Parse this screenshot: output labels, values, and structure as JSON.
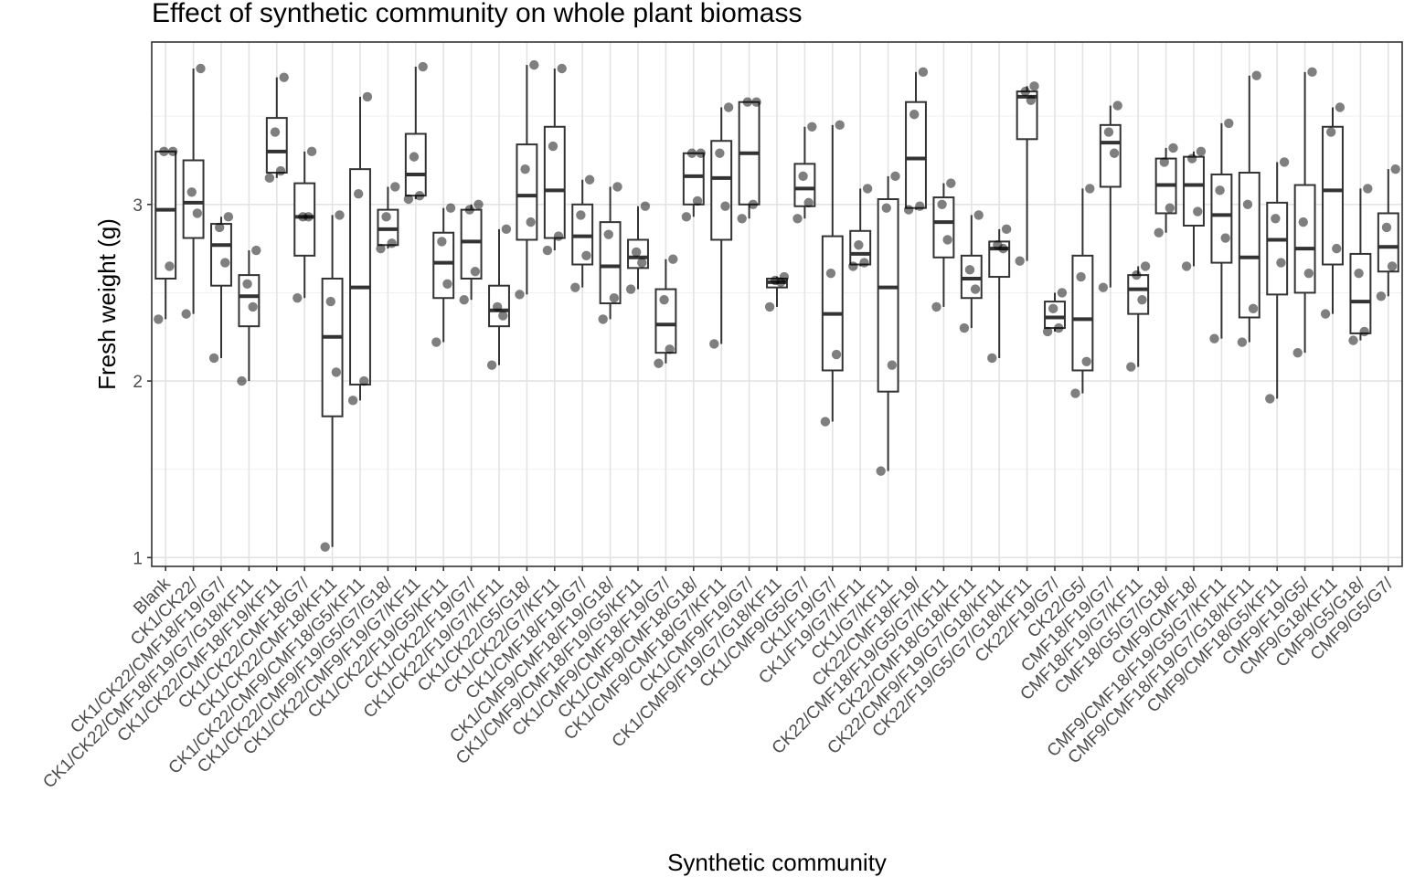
{
  "chart_data": {
    "type": "box",
    "title": "Effect of synthetic community on whole plant biomass",
    "xlabel": "Synthetic community",
    "ylabel": "Fresh weight (g)",
    "ylim": [
      0.95,
      3.92
    ],
    "yticks": [
      1,
      2,
      3
    ],
    "grid": true,
    "categories": [
      "Blank",
      "CK1/CK22/",
      "CK1/CK22/CMF18/F19/G7/",
      "CK1/CK22/CMF18/F19/G7/G18/KF11",
      "CK1/CK22/CMF18/F19/KF11",
      "CK1/CK22/CMF18/G7/",
      "CK1/CK22/CMF18/KF11",
      "CK1/CK22/CMF9/CMF18/G5/KF11",
      "CK1/CK22/CMF9/F19/G5/G7/G18/",
      "CK1/CK22/CMF9/F19/G7/KF11",
      "CK1/CK22/F19/G5/KF11",
      "CK1/CK22/F19/G7/",
      "CK1/CK22/F19/G7/KF11",
      "CK1/CK22/G5/G18/",
      "CK1/CK22/G7/KF11",
      "CK1/CMF18/F19/G7/",
      "CK1/CMF9/CMF18/F19/G18/",
      "CK1/CMF9/CMF18/F19/G5/KF11",
      "CK1/CMF9/CMF18/F19/G7/",
      "CK1/CMF9/CMF18/G18/",
      "CK1/CMF9/CMF18/G7/KF11",
      "CK1/CMF9/F19/G7/",
      "CK1/CMF9/F19/G7/G18/KF11",
      "CK1/CMF9/G5/G7/",
      "CK1/F19/G7/",
      "CK1/F19/G7/KF11",
      "CK1/G7/KF11",
      "CK22/CMF18/F19/",
      "CK22/CMF18/F19/G5/G7/KF11",
      "CK22/CMF18/G18/KF11",
      "CK22/CMF9/F19/G7/G18/KF11",
      "CK22/F19/G5/G7/G18/KF11",
      "CK22/F19/G7/",
      "CK22/G5/",
      "CMF18/F19/G7/",
      "CMF18/F19/G7/KF11",
      "CMF18/G5/G7/G18/",
      "CMF9/CMF18/",
      "CMF9/CMF18/F19/G5/G7/KF11",
      "CMF9/CMF18/F19/G7/G18/KF11",
      "CMF9/CMF18/G5/KF11",
      "CMF9/F19/G5/",
      "CMF9/G18/KF11",
      "CMF9/G5/G18/",
      "CMF9/G5/G7/"
    ],
    "boxes": [
      {
        "min": 2.35,
        "q1": 2.58,
        "median": 2.97,
        "q3": 3.3,
        "max": 3.3,
        "points": [
          2.35,
          2.65,
          3.3,
          3.3
        ]
      },
      {
        "min": 2.38,
        "q1": 2.81,
        "median": 3.01,
        "q3": 3.25,
        "max": 3.77,
        "points": [
          2.38,
          2.95,
          3.07,
          3.77
        ]
      },
      {
        "min": 2.13,
        "q1": 2.54,
        "median": 2.77,
        "q3": 2.89,
        "max": 2.93,
        "points": [
          2.13,
          2.67,
          2.87,
          2.93
        ]
      },
      {
        "min": 2.0,
        "q1": 2.31,
        "median": 2.48,
        "q3": 2.6,
        "max": 2.74,
        "points": [
          2.0,
          2.42,
          2.55,
          2.74
        ]
      },
      {
        "min": 3.15,
        "q1": 3.18,
        "median": 3.3,
        "q3": 3.49,
        "max": 3.72,
        "points": [
          3.15,
          3.19,
          3.41,
          3.72
        ]
      },
      {
        "min": 2.47,
        "q1": 2.71,
        "median": 2.93,
        "q3": 3.12,
        "max": 3.3,
        "points": [
          2.47,
          2.93,
          2.93,
          3.3
        ]
      },
      {
        "min": 1.06,
        "q1": 1.8,
        "median": 2.25,
        "q3": 2.58,
        "max": 2.94,
        "points": [
          1.06,
          2.05,
          2.45,
          2.94
        ]
      },
      {
        "min": 1.89,
        "q1": 1.98,
        "median": 2.53,
        "q3": 3.2,
        "max": 3.61,
        "points": [
          1.89,
          2.0,
          3.06,
          3.61
        ]
      },
      {
        "min": 2.75,
        "q1": 2.77,
        "median": 2.86,
        "q3": 2.97,
        "max": 3.1,
        "points": [
          2.75,
          2.78,
          2.93,
          3.1
        ]
      },
      {
        "min": 3.03,
        "q1": 3.05,
        "median": 3.17,
        "q3": 3.4,
        "max": 3.78,
        "points": [
          3.03,
          3.05,
          3.27,
          3.78
        ]
      },
      {
        "min": 2.22,
        "q1": 2.47,
        "median": 2.67,
        "q3": 2.84,
        "max": 2.98,
        "points": [
          2.22,
          2.55,
          2.79,
          2.98
        ]
      },
      {
        "min": 2.46,
        "q1": 2.58,
        "median": 2.79,
        "q3": 2.97,
        "max": 3.0,
        "points": [
          2.46,
          2.62,
          2.97,
          3.0
        ]
      },
      {
        "min": 2.09,
        "q1": 2.31,
        "median": 2.4,
        "q3": 2.54,
        "max": 2.86,
        "points": [
          2.09,
          2.37,
          2.42,
          2.86
        ]
      },
      {
        "min": 2.49,
        "q1": 2.8,
        "median": 3.05,
        "q3": 3.34,
        "max": 3.79,
        "points": [
          2.49,
          2.9,
          3.2,
          3.79
        ]
      },
      {
        "min": 2.74,
        "q1": 2.81,
        "median": 3.08,
        "q3": 3.44,
        "max": 3.77,
        "points": [
          2.74,
          2.82,
          3.33,
          3.77
        ]
      },
      {
        "min": 2.53,
        "q1": 2.66,
        "median": 2.82,
        "q3": 3.0,
        "max": 3.14,
        "points": [
          2.53,
          2.71,
          2.94,
          3.14
        ]
      },
      {
        "min": 2.35,
        "q1": 2.44,
        "median": 2.65,
        "q3": 2.9,
        "max": 3.1,
        "points": [
          2.35,
          2.47,
          2.83,
          3.1
        ]
      },
      {
        "min": 2.52,
        "q1": 2.64,
        "median": 2.7,
        "q3": 2.8,
        "max": 2.99,
        "points": [
          2.52,
          2.67,
          2.73,
          2.99
        ]
      },
      {
        "min": 2.1,
        "q1": 2.16,
        "median": 2.32,
        "q3": 2.52,
        "max": 2.69,
        "points": [
          2.1,
          2.18,
          2.46,
          2.69
        ]
      },
      {
        "min": 2.93,
        "q1": 3.0,
        "median": 3.16,
        "q3": 3.29,
        "max": 3.29,
        "points": [
          2.93,
          3.02,
          3.29,
          3.29
        ]
      },
      {
        "min": 2.21,
        "q1": 2.8,
        "median": 3.15,
        "q3": 3.36,
        "max": 3.55,
        "points": [
          2.21,
          2.99,
          3.29,
          3.55
        ]
      },
      {
        "min": 2.92,
        "q1": 3.0,
        "median": 3.29,
        "q3": 3.58,
        "max": 3.58,
        "points": [
          2.92,
          3.0,
          3.58,
          3.58
        ]
      },
      {
        "min": 2.42,
        "q1": 2.53,
        "median": 2.56,
        "q3": 2.58,
        "max": 2.59,
        "points": [
          2.42,
          2.56,
          2.57,
          2.59
        ]
      },
      {
        "min": 2.92,
        "q1": 2.99,
        "median": 3.09,
        "q3": 3.23,
        "max": 3.44,
        "points": [
          2.92,
          3.01,
          3.16,
          3.44
        ]
      },
      {
        "min": 1.77,
        "q1": 2.06,
        "median": 2.38,
        "q3": 2.82,
        "max": 3.45,
        "points": [
          1.77,
          2.15,
          2.61,
          3.45
        ]
      },
      {
        "min": 2.65,
        "q1": 2.66,
        "median": 2.72,
        "q3": 2.85,
        "max": 3.09,
        "points": [
          2.65,
          2.67,
          2.77,
          3.09
        ]
      },
      {
        "min": 1.49,
        "q1": 1.94,
        "median": 2.53,
        "q3": 3.03,
        "max": 3.16,
        "points": [
          1.49,
          2.09,
          2.98,
          3.16
        ]
      },
      {
        "min": 2.97,
        "q1": 2.98,
        "median": 3.26,
        "q3": 3.58,
        "max": 3.75,
        "points": [
          2.97,
          2.99,
          3.51,
          3.75
        ]
      },
      {
        "min": 2.42,
        "q1": 2.7,
        "median": 2.9,
        "q3": 3.04,
        "max": 3.12,
        "points": [
          2.42,
          2.8,
          3.0,
          3.12
        ]
      },
      {
        "min": 2.3,
        "q1": 2.47,
        "median": 2.58,
        "q3": 2.71,
        "max": 2.94,
        "points": [
          2.3,
          2.52,
          2.63,
          2.94
        ]
      },
      {
        "min": 2.13,
        "q1": 2.59,
        "median": 2.75,
        "q3": 2.79,
        "max": 2.86,
        "points": [
          2.13,
          2.75,
          2.77,
          2.86
        ]
      },
      {
        "min": 2.68,
        "q1": 3.37,
        "median": 3.61,
        "q3": 3.64,
        "max": 3.67,
        "points": [
          2.68,
          3.59,
          3.64,
          3.67
        ]
      },
      {
        "min": 2.28,
        "q1": 2.3,
        "median": 2.36,
        "q3": 2.45,
        "max": 2.5,
        "points": [
          2.28,
          2.3,
          2.41,
          2.5
        ]
      },
      {
        "min": 1.93,
        "q1": 2.06,
        "median": 2.35,
        "q3": 2.71,
        "max": 3.09,
        "points": [
          1.93,
          2.11,
          2.59,
          3.09
        ]
      },
      {
        "min": 2.53,
        "q1": 3.1,
        "median": 3.35,
        "q3": 3.45,
        "max": 3.56,
        "points": [
          2.53,
          3.29,
          3.41,
          3.56
        ]
      },
      {
        "min": 2.08,
        "q1": 2.38,
        "median": 2.52,
        "q3": 2.6,
        "max": 2.65,
        "points": [
          2.08,
          2.46,
          2.6,
          2.65
        ]
      },
      {
        "min": 2.84,
        "q1": 2.95,
        "median": 3.11,
        "q3": 3.26,
        "max": 3.32,
        "points": [
          2.84,
          2.98,
          3.24,
          3.32
        ]
      },
      {
        "min": 2.65,
        "q1": 2.88,
        "median": 3.11,
        "q3": 3.27,
        "max": 3.3,
        "points": [
          2.65,
          2.96,
          3.26,
          3.3
        ]
      },
      {
        "min": 2.24,
        "q1": 2.67,
        "median": 2.94,
        "q3": 3.17,
        "max": 3.46,
        "points": [
          2.24,
          2.81,
          3.08,
          3.46
        ]
      },
      {
        "min": 2.22,
        "q1": 2.36,
        "median": 2.7,
        "q3": 3.18,
        "max": 3.73,
        "points": [
          2.22,
          2.41,
          3.0,
          3.73
        ]
      },
      {
        "min": 1.9,
        "q1": 2.49,
        "median": 2.8,
        "q3": 3.01,
        "max": 3.24,
        "points": [
          1.9,
          2.67,
          2.92,
          3.24
        ]
      },
      {
        "min": 2.16,
        "q1": 2.5,
        "median": 2.75,
        "q3": 3.11,
        "max": 3.75,
        "points": [
          2.16,
          2.61,
          2.9,
          3.75
        ]
      },
      {
        "min": 2.38,
        "q1": 2.66,
        "median": 3.08,
        "q3": 3.44,
        "max": 3.55,
        "points": [
          2.38,
          2.75,
          3.41,
          3.55
        ]
      },
      {
        "min": 2.23,
        "q1": 2.27,
        "median": 2.45,
        "q3": 2.72,
        "max": 3.09,
        "points": [
          2.23,
          2.28,
          2.61,
          3.09
        ]
      },
      {
        "min": 2.48,
        "q1": 2.62,
        "median": 2.76,
        "q3": 2.95,
        "max": 3.2,
        "points": [
          2.48,
          2.65,
          2.87,
          3.2
        ]
      }
    ]
  }
}
